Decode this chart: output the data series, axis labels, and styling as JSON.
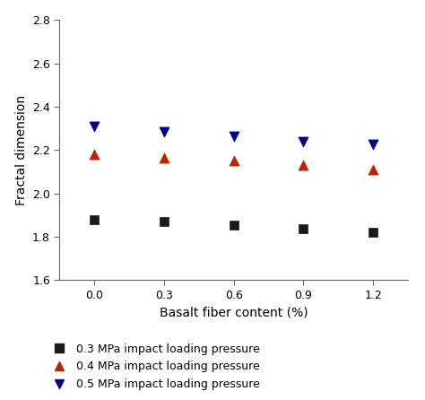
{
  "x": [
    0.0,
    0.3,
    0.6,
    0.9,
    1.2
  ],
  "series": [
    {
      "label": "0.3 MPa impact loading pressure",
      "values": [
        1.88,
        1.87,
        1.855,
        1.835,
        1.82
      ],
      "color": "#1a1a1a",
      "marker": "s",
      "markersize": 7
    },
    {
      "label": "0.4 MPa impact loading pressure",
      "values": [
        2.18,
        2.165,
        2.15,
        2.13,
        2.11
      ],
      "color": "#bb2200",
      "marker": "^",
      "markersize": 8
    },
    {
      "label": "0.5 MPa impact loading pressure",
      "values": [
        2.31,
        2.285,
        2.265,
        2.24,
        2.225
      ],
      "color": "#00008b",
      "marker": "v",
      "markersize": 8
    }
  ],
  "xlabel": "Basalt fiber content (%)",
  "ylabel": "Fractal dimension",
  "xlim": [
    -0.15,
    1.35
  ],
  "ylim": [
    1.6,
    2.8
  ],
  "yticks": [
    1.6,
    1.8,
    2.0,
    2.2,
    2.4,
    2.6,
    2.8
  ],
  "xticks": [
    0.0,
    0.3,
    0.6,
    0.9,
    1.2
  ],
  "background_color": "#ffffff",
  "legend_fontsize": 9,
  "axis_fontsize": 10,
  "tick_fontsize": 9
}
